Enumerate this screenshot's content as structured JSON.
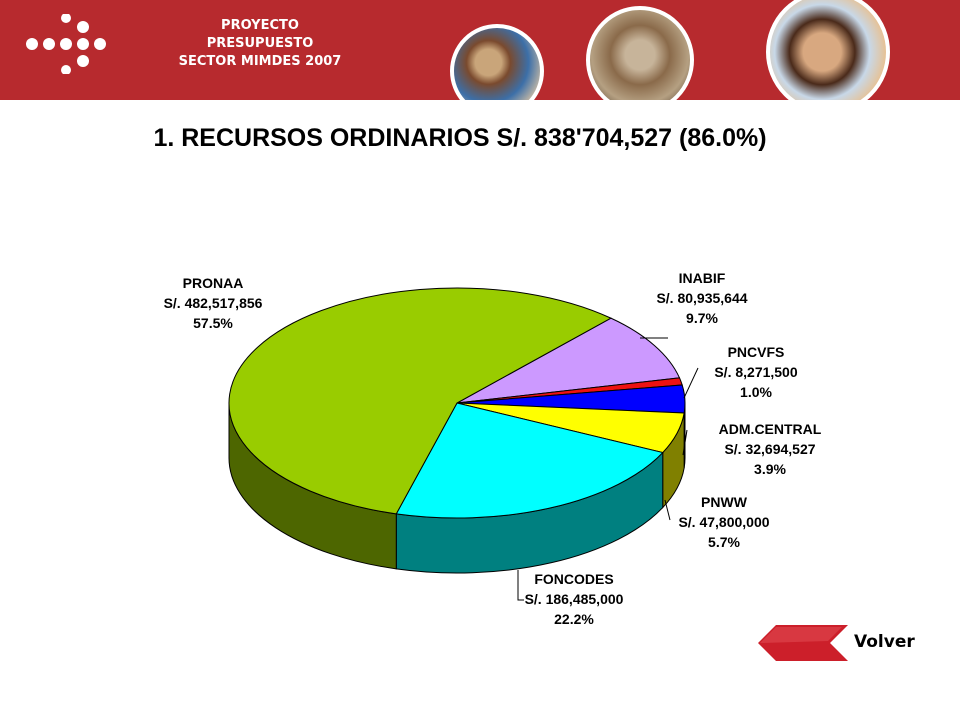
{
  "header": {
    "lines": [
      "PROYECTO",
      "PRESUPUESTO",
      "SECTOR MIMDES 2007"
    ],
    "colors": {
      "bar": "#b72a2e"
    }
  },
  "chart_data": {
    "type": "pie",
    "title": "1. RECURSOS ORDINARIOS S/. 838'704,527 (86.0%)",
    "slices": [
      {
        "name": "PRONAA",
        "amount": "S/. 482,517,856",
        "percent": "57.5%",
        "value": 57.5,
        "color": "#99cc00",
        "side": "#4d6600"
      },
      {
        "name": "INABIF",
        "amount": "S/. 80,935,644",
        "percent": "9.7%",
        "value": 9.7,
        "color": "#cc99ff",
        "side": "#66507f"
      },
      {
        "name": "PNCVFS",
        "amount": "S/. 8,271,500",
        "percent": "1.0%",
        "value": 1.0,
        "color": "#ee1111",
        "side": "#770909"
      },
      {
        "name": "ADM.CENTRAL",
        "amount": "S/. 32,694,527",
        "percent": "3.9%",
        "value": 3.9,
        "color": "#0000ff",
        "side": "#000080"
      },
      {
        "name": "PNWW",
        "amount": "S/. 47,800,000",
        "percent": "5.7%",
        "value": 5.7,
        "color": "#ffff00",
        "side": "#808000"
      },
      {
        "name": "FONCODES",
        "amount": "S/. 186,485,000",
        "percent": "22.2%",
        "value": 22.2,
        "color": "#00ffff",
        "side": "#008080"
      }
    ]
  },
  "nav": {
    "back_label": "Volver",
    "arrow_color": "#cc1f2a"
  }
}
